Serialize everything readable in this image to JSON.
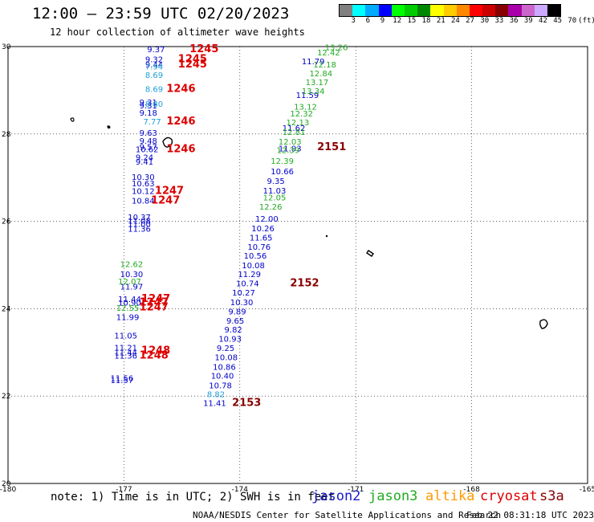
{
  "header": {
    "title": "12:00 — 23:59 UTC 02/20/2023",
    "subtitle": "12 hour collection of altimeter wave heights"
  },
  "colorbar": {
    "unit_label": "(ft)",
    "colors": [
      "#808080",
      "#00ffff",
      "#00aaff",
      "#0000ff",
      "#00ff00",
      "#00cc00",
      "#008800",
      "#ffff00",
      "#ffcc00",
      "#ff8800",
      "#ff0000",
      "#cc0000",
      "#880000",
      "#aa00aa",
      "#cc66cc",
      "#ccaaff",
      "#000000"
    ],
    "labels": [
      "3",
      "6",
      "9",
      "12",
      "15",
      "18",
      "21",
      "24",
      "27",
      "30",
      "33",
      "36",
      "39",
      "42",
      "45",
      "70",
      "(ft)"
    ]
  },
  "chart_data": {
    "type": "scatter",
    "title": "12:00 — 23:59 UTC 02/20/2023",
    "subtitle": "12 hour collection of altimeter wave heights",
    "xlim": [
      -180,
      -165
    ],
    "ylim": [
      20,
      30
    ],
    "x_ticks": [
      "-180",
      "-177",
      "-174",
      "-171",
      "-168",
      "-165"
    ],
    "y_ticks": [
      "30",
      "28",
      "26",
      "24",
      "22",
      "20"
    ],
    "x_tick_values": [
      -180,
      -177,
      -174,
      -171,
      -168,
      -165
    ],
    "y_tick_values": [
      30,
      28,
      26,
      24,
      22,
      20
    ],
    "grid": "dotted",
    "series": [
      {
        "name": "jason2",
        "color": "#0000cc",
        "points": [
          {
            "x": -176.4,
            "y": 29.87,
            "label": "9.37"
          },
          {
            "x": -176.45,
            "y": 29.64,
            "label": "9.32"
          },
          {
            "x": -176.45,
            "y": 29.52,
            "label": "9.44"
          },
          {
            "x": -176.6,
            "y": 28.66,
            "label": "9.31"
          },
          {
            "x": -176.6,
            "y": 28.58,
            "label": "9.31"
          },
          {
            "x": -176.6,
            "y": 28.42,
            "label": "9.18"
          },
          {
            "x": -176.6,
            "y": 27.96,
            "label": "9.63"
          },
          {
            "x": -176.6,
            "y": 27.78,
            "label": "9.48"
          },
          {
            "x": -176.6,
            "y": 27.64,
            "label": "9.57"
          },
          {
            "x": -176.7,
            "y": 27.58,
            "label": "10.62"
          },
          {
            "x": -176.7,
            "y": 27.4,
            "label": "9.24"
          },
          {
            "x": -176.7,
            "y": 27.3,
            "label": "9.41"
          },
          {
            "x": -176.8,
            "y": 26.95,
            "label": "10.30"
          },
          {
            "x": -176.8,
            "y": 26.8,
            "label": "10.63"
          },
          {
            "x": -176.8,
            "y": 26.63,
            "label": "10.12"
          },
          {
            "x": -176.8,
            "y": 26.41,
            "label": "10.84"
          },
          {
            "x": -176.9,
            "y": 26.03,
            "label": "10.37"
          },
          {
            "x": -176.9,
            "y": 25.95,
            "label": "11.08"
          },
          {
            "x": -176.9,
            "y": 25.87,
            "label": "11.00"
          },
          {
            "x": -176.9,
            "y": 25.76,
            "label": "11.36"
          },
          {
            "x": -177.1,
            "y": 24.72,
            "label": "10.30"
          },
          {
            "x": -177.1,
            "y": 24.44,
            "label": "11.97"
          },
          {
            "x": -177.15,
            "y": 24.15,
            "label": "11.44"
          },
          {
            "x": -177.15,
            "y": 24.07,
            "label": "10.90"
          },
          {
            "x": -177.2,
            "y": 23.74,
            "label": "11.99"
          },
          {
            "x": -177.25,
            "y": 23.32,
            "label": "11.05"
          },
          {
            "x": -177.25,
            "y": 23.04,
            "label": "11.21"
          },
          {
            "x": -177.25,
            "y": 22.93,
            "label": "11.44"
          },
          {
            "x": -177.25,
            "y": 22.86,
            "label": "11.36"
          },
          {
            "x": -177.35,
            "y": 22.34,
            "label": "11.56"
          },
          {
            "x": -177.35,
            "y": 22.3,
            "label": "11.57"
          },
          {
            "x": -172.4,
            "y": 29.6,
            "label": "11.79"
          },
          {
            "x": -172.55,
            "y": 28.82,
            "label": "11.59"
          },
          {
            "x": -172.9,
            "y": 28.07,
            "label": "11.62"
          },
          {
            "x": -173.0,
            "y": 27.6,
            "label": "11.93"
          },
          {
            "x": -173.2,
            "y": 27.08,
            "label": "10.66"
          },
          {
            "x": -173.3,
            "y": 26.86,
            "label": "9.35"
          },
          {
            "x": -173.4,
            "y": 26.64,
            "label": "11.03"
          },
          {
            "x": -173.6,
            "y": 25.99,
            "label": "12.00"
          },
          {
            "x": -173.7,
            "y": 25.77,
            "label": "10.26"
          },
          {
            "x": -173.75,
            "y": 25.56,
            "label": "11.65"
          },
          {
            "x": -173.8,
            "y": 25.35,
            "label": "10.76"
          },
          {
            "x": -173.9,
            "y": 25.15,
            "label": "10.56"
          },
          {
            "x": -173.95,
            "y": 24.93,
            "label": "10.08"
          },
          {
            "x": -174.05,
            "y": 24.72,
            "label": "11.29"
          },
          {
            "x": -174.1,
            "y": 24.51,
            "label": "10.74"
          },
          {
            "x": -174.2,
            "y": 24.3,
            "label": "10.27"
          },
          {
            "x": -174.25,
            "y": 24.08,
            "label": "10.30"
          },
          {
            "x": -174.3,
            "y": 23.87,
            "label": "9.89"
          },
          {
            "x": -174.35,
            "y": 23.66,
            "label": "9.65"
          },
          {
            "x": -174.4,
            "y": 23.46,
            "label": "9.82"
          },
          {
            "x": -174.55,
            "y": 23.24,
            "label": "10.93"
          },
          {
            "x": -174.6,
            "y": 23.03,
            "label": "9.25"
          },
          {
            "x": -174.65,
            "y": 22.82,
            "label": "10.08"
          },
          {
            "x": -174.7,
            "y": 22.6,
            "label": "10.86"
          },
          {
            "x": -174.75,
            "y": 22.4,
            "label": "10.40"
          },
          {
            "x": -174.8,
            "y": 22.18,
            "label": "10.78"
          },
          {
            "x": -174.95,
            "y": 21.77,
            "label": "11.41"
          }
        ]
      },
      {
        "name": "jason3",
        "color": "#22aa22",
        "points": [
          {
            "x": -177.1,
            "y": 24.95,
            "label": "12.62"
          },
          {
            "x": -177.15,
            "y": 24.56,
            "label": "12.07"
          },
          {
            "x": -177.2,
            "y": 23.95,
            "label": "12.55"
          },
          {
            "x": -171.8,
            "y": 29.92,
            "label": "13.26"
          },
          {
            "x": -172.0,
            "y": 29.8,
            "label": "12.42"
          },
          {
            "x": -172.1,
            "y": 29.52,
            "label": "12.18"
          },
          {
            "x": -172.2,
            "y": 29.32,
            "label": "12.84"
          },
          {
            "x": -172.3,
            "y": 29.12,
            "label": "13.17"
          },
          {
            "x": -172.4,
            "y": 28.92,
            "label": "13.34"
          },
          {
            "x": -172.6,
            "y": 28.56,
            "label": "13.12"
          },
          {
            "x": -172.7,
            "y": 28.4,
            "label": "12.32"
          },
          {
            "x": -172.8,
            "y": 28.2,
            "label": "12.13"
          },
          {
            "x": -172.9,
            "y": 27.98,
            "label": "12.81"
          },
          {
            "x": -173.0,
            "y": 27.76,
            "label": "12.03"
          },
          {
            "x": -173.05,
            "y": 27.56,
            "label": "12.39"
          },
          {
            "x": -173.2,
            "y": 27.32,
            "label": "12.39"
          },
          {
            "x": -173.4,
            "y": 26.48,
            "label": "12.05"
          },
          {
            "x": -173.5,
            "y": 26.27,
            "label": "12.26"
          }
        ]
      },
      {
        "name": "jason3",
        "color": "#1ea0d8",
        "points": [
          {
            "x": -176.45,
            "y": 29.48,
            "label": "7.94"
          },
          {
            "x": -176.45,
            "y": 29.28,
            "label": "8.69"
          },
          {
            "x": -176.45,
            "y": 28.96,
            "label": "8.69"
          },
          {
            "x": -176.45,
            "y": 28.62,
            "label": "8.80"
          },
          {
            "x": -176.5,
            "y": 28.22,
            "label": "7.77"
          },
          {
            "x": -174.85,
            "y": 21.98,
            "label": "8.82"
          }
        ]
      },
      {
        "name": "cryosat",
        "color": "#dd0000",
        "points": [
          {
            "x": -175.3,
            "y": 29.87,
            "label": "1245"
          },
          {
            "x": -175.6,
            "y": 29.64,
            "label": "1245"
          },
          {
            "x": -175.6,
            "y": 29.52,
            "label": "1245"
          },
          {
            "x": -175.9,
            "y": 28.96,
            "label": "1246"
          },
          {
            "x": -175.9,
            "y": 28.22,
            "label": "1246"
          },
          {
            "x": -175.9,
            "y": 27.58,
            "label": "1246"
          },
          {
            "x": -176.2,
            "y": 26.63,
            "label": "1247"
          },
          {
            "x": -176.3,
            "y": 26.41,
            "label": "1247"
          },
          {
            "x": -176.55,
            "y": 24.15,
            "label": "1247"
          },
          {
            "x": -176.6,
            "y": 24.07,
            "label": "1247"
          },
          {
            "x": -176.6,
            "y": 23.96,
            "label": "1247"
          },
          {
            "x": -176.55,
            "y": 22.97,
            "label": "1248"
          },
          {
            "x": -176.6,
            "y": 22.86,
            "label": "1248"
          }
        ]
      },
      {
        "name": "s3a",
        "color": "#880000",
        "points": [
          {
            "x": -172.0,
            "y": 27.63,
            "label": "2151"
          },
          {
            "x": -172.7,
            "y": 24.51,
            "label": "2152"
          },
          {
            "x": -174.2,
            "y": 21.77,
            "label": "2153"
          }
        ]
      }
    ]
  },
  "footer": {
    "note": "note: 1) Time is in UTC; 2) SWH is in feet",
    "legend": [
      {
        "name": "jason2",
        "color": "#1a1acc"
      },
      {
        "name": "jason3",
        "color": "#22aa22"
      },
      {
        "name": "altika",
        "color": "#ff9900"
      },
      {
        "name": "cryosat",
        "color": "#dd0000"
      },
      {
        "name": "s3a",
        "color": "#880000"
      }
    ],
    "credit": "NOAA/NESDIS Center for Satellite Applications and Research",
    "timestamp": "Feb 22 08:31:18 UTC 2023"
  }
}
